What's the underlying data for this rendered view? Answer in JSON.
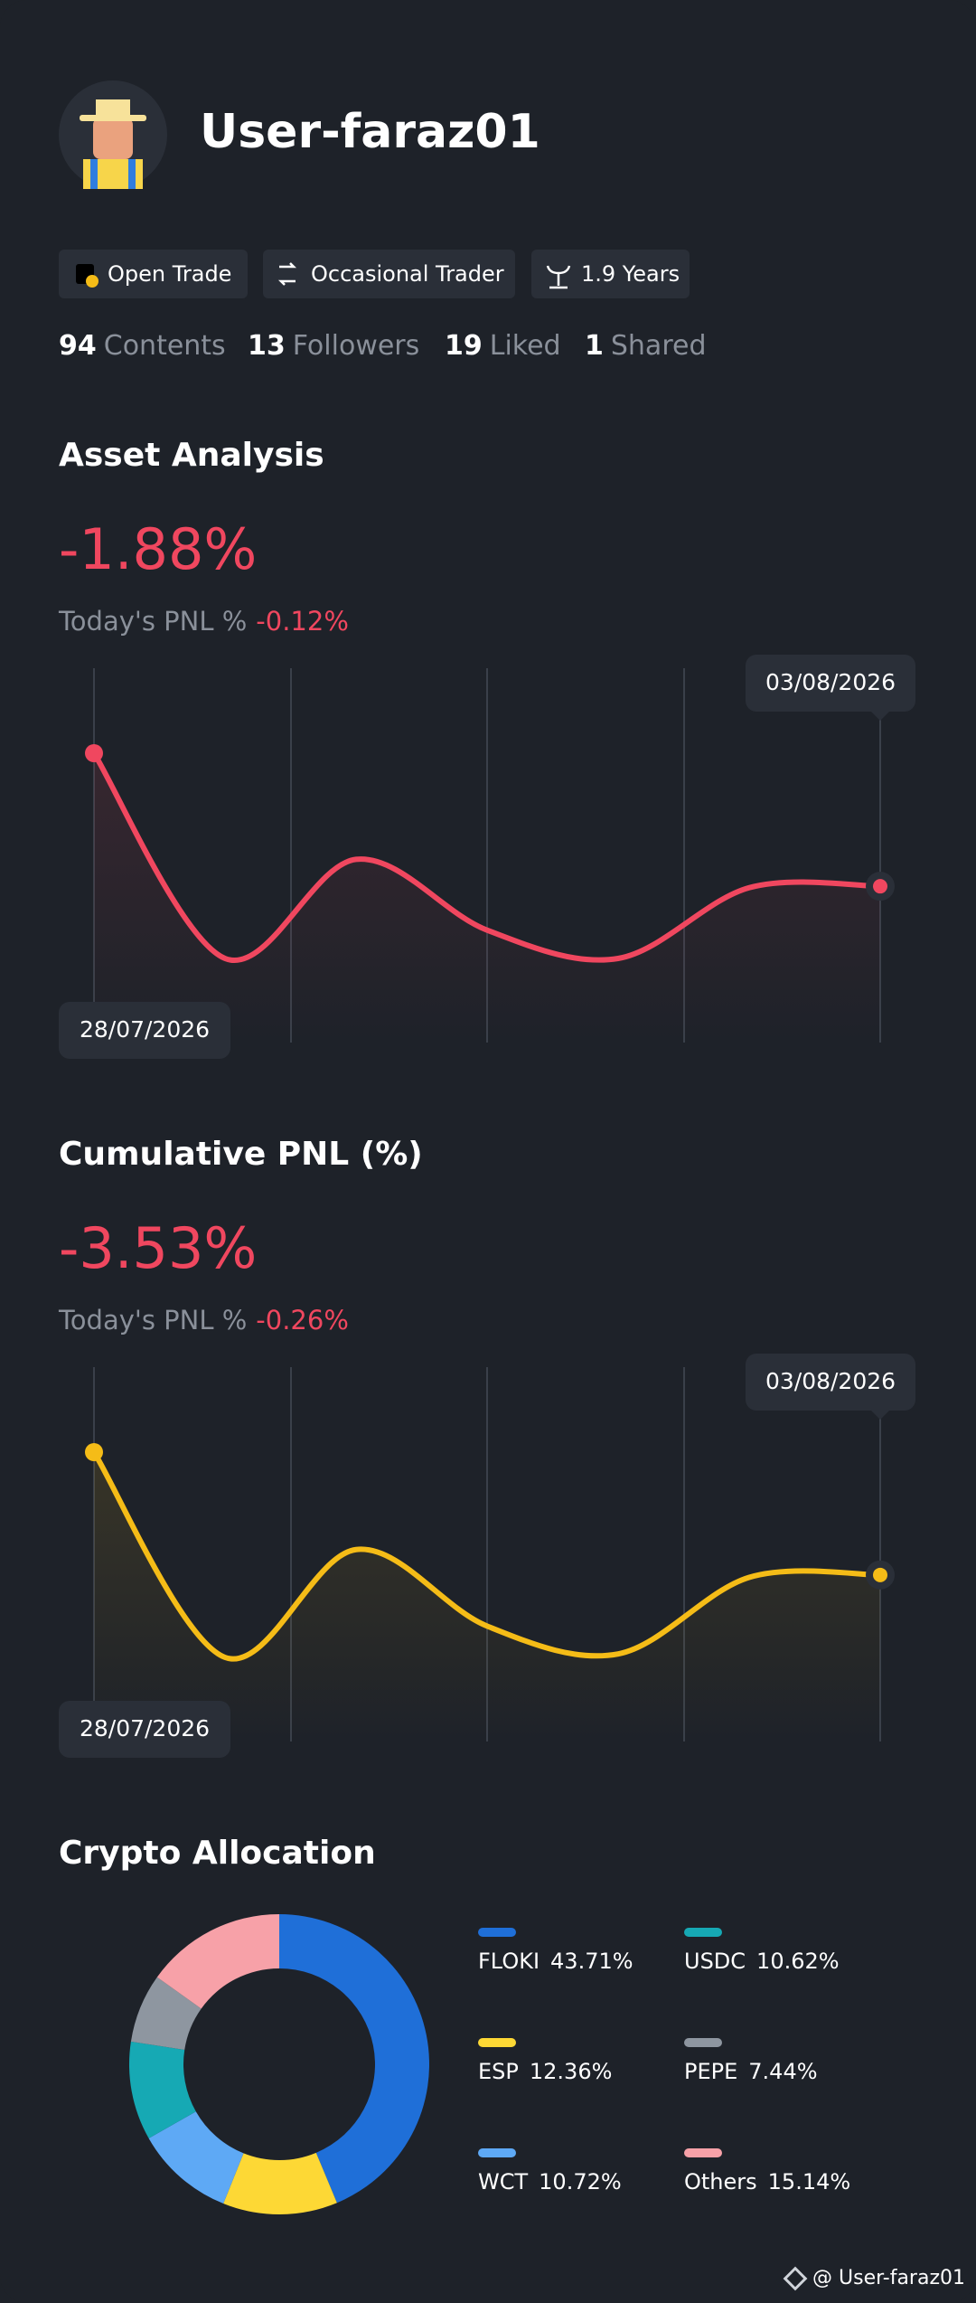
{
  "profile": {
    "username": "User-faraz01",
    "tags": [
      "Open Trade",
      "Occasional Trader",
      "1.9 Years"
    ],
    "stats": [
      {
        "count": 94,
        "label": "Contents"
      },
      {
        "count": 13,
        "label": "Followers"
      },
      {
        "count": 19,
        "label": "Liked"
      },
      {
        "count": 1,
        "label": "Shared"
      }
    ]
  },
  "chart_data": [
    {
      "type": "line",
      "title": "Asset Analysis",
      "headline": "-1.88%",
      "subtitle": "Today's PNL %",
      "subtitle_value": "-0.12%",
      "categories": [
        "28/07/2026",
        null,
        null,
        null,
        null,
        null,
        "03/08/2026"
      ],
      "values": [
        0,
        -2.9,
        -1.5,
        -2.5,
        -2.9,
        -1.9,
        -1.88
      ],
      "color": "#f0475f"
    },
    {
      "type": "line",
      "title": "Cumulative PNL (%)",
      "headline": "-3.53%",
      "subtitle": "Today's PNL %",
      "subtitle_value": "-0.26%",
      "categories": [
        "28/07/2026",
        null,
        null,
        null,
        null,
        null,
        "03/08/2026"
      ],
      "values": [
        0,
        -5.9,
        -2.8,
        -5.0,
        -5.8,
        -3.6,
        -3.53
      ],
      "color": "#f5bc17"
    },
    {
      "type": "pie",
      "title": "Crypto Allocation",
      "categories": [
        "FLOKI",
        "ESP",
        "WCT",
        "USDC",
        "PEPE",
        "Others"
      ],
      "values": [
        43.71,
        12.36,
        10.72,
        10.62,
        7.44,
        15.14
      ],
      "value_labels": [
        "43.71%",
        "12.36%",
        "10.72%",
        "10.62%",
        "7.44%",
        "15.14%"
      ],
      "colors": [
        "#1f6fd8",
        "#fdd835",
        "#5ea9f5",
        "#16a9b4",
        "#8e96a0",
        "#f7a1a8"
      ]
    }
  ],
  "footer": "@ User-faraz01"
}
